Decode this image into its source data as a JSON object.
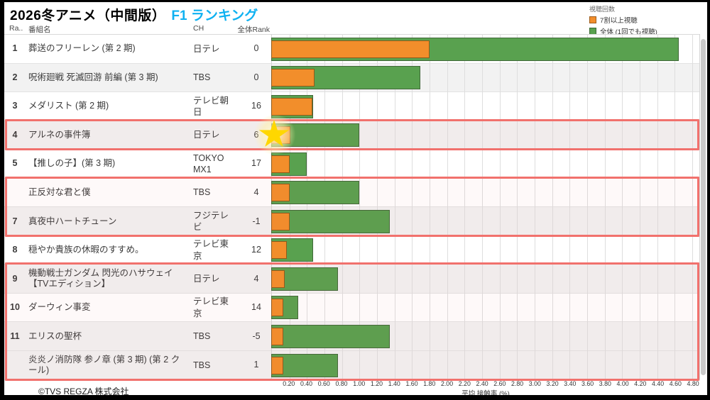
{
  "title": {
    "main": "2026冬アニメ（中間版）",
    "accent": "F1 ランキング"
  },
  "legend": {
    "title": "視聴回数",
    "items": [
      {
        "label": "7割以上視聴",
        "color": "#f28e2b"
      },
      {
        "label": "全体 (1回でも視聴)",
        "color": "#59a14f"
      }
    ]
  },
  "columns": {
    "rank": "Ra..",
    "title": "番組名",
    "channel": "CH",
    "rank_diff": "全体Rank差"
  },
  "rows": [
    {
      "rank": "1",
      "title": "葬送のフリーレン (第 2 期)",
      "channel": "日テレ",
      "diff": "0",
      "total": 4.64,
      "heavy": 1.8,
      "band": "white"
    },
    {
      "rank": "2",
      "title": "呪術廻戦 死滅回游 前編 (第 3 期)",
      "channel": "TBS",
      "diff": "0",
      "total": 1.7,
      "heavy": 0.49,
      "band": "gray"
    },
    {
      "rank": "3",
      "title": "メダリスト (第 2 期)",
      "channel": "テレビ朝日",
      "diff": "16",
      "total": 0.48,
      "heavy": 0.47,
      "band": "white"
    },
    {
      "rank": "4",
      "title": "アルネの事件簿",
      "channel": "日テレ",
      "diff": "6",
      "total": 1.0,
      "heavy": 0.22,
      "band": "gray"
    },
    {
      "rank": "5",
      "title": "【推しの子】(第 3 期)",
      "channel": "TOKYO MX1",
      "diff": "17",
      "total": 0.4,
      "heavy": 0.21,
      "band": "white"
    },
    {
      "rank": "",
      "title": "正反対な君と僕",
      "channel": "TBS",
      "diff": "4",
      "total": 1.0,
      "heavy": 0.21,
      "band": "white"
    },
    {
      "rank": "7",
      "title": "真夜中ハートチューン",
      "channel": "フジテレビ",
      "diff": "-1",
      "total": 1.35,
      "heavy": 0.21,
      "band": "gray"
    },
    {
      "rank": "8",
      "title": "穏やか貴族の休暇のすすめ。",
      "channel": "テレビ東京",
      "diff": "12",
      "total": 0.48,
      "heavy": 0.18,
      "band": "white"
    },
    {
      "rank": "9",
      "title": "機動戦士ガンダム 閃光のハサウェイ【TVエディション】",
      "channel": "日テレ",
      "diff": "4",
      "total": 0.76,
      "heavy": 0.15,
      "band": "gray"
    },
    {
      "rank": "10",
      "title": "ダーウィン事変",
      "channel": "テレビ東京",
      "diff": "14",
      "total": 0.31,
      "heavy": 0.14,
      "band": "white"
    },
    {
      "rank": "11",
      "title": "エリスの聖杯",
      "channel": "TBS",
      "diff": "-5",
      "total": 1.35,
      "heavy": 0.14,
      "band": "gray"
    },
    {
      "rank": "",
      "title": "炎炎ノ消防隊 参ノ章 (第 3 期) (第 2 クール)",
      "channel": "TBS",
      "diff": "1",
      "total": 0.76,
      "heavy": 0.14,
      "band": "gray"
    }
  ],
  "axis": {
    "label": "平均 接触率 (%)",
    "max": 4.88,
    "ticks": [
      "0.20",
      "0.40",
      "0.60",
      "0.80",
      "1.00",
      "1.20",
      "1.40",
      "1.60",
      "1.80",
      "2.00",
      "2.20",
      "2.40",
      "2.60",
      "2.80",
      "3.00",
      "3.20",
      "3.40",
      "3.60",
      "3.80",
      "4.00",
      "4.20",
      "4.40",
      "4.60",
      "4.80"
    ]
  },
  "highlight_boxes": [
    {
      "start_row": 3,
      "end_row": 3
    },
    {
      "start_row": 5,
      "end_row": 6
    },
    {
      "start_row": 8,
      "end_row": 11
    }
  ],
  "star": {
    "row_index": 3
  },
  "footer": {
    "copyright": "©TVS REGZA 株式会社"
  },
  "colors": {
    "bar_total": "#59a14f",
    "bar_heavy": "#f28e2b",
    "accent_title": "#0eb1f1",
    "highlight_border": "#f1716d",
    "band_gray": "#f2f2f2",
    "star": "#ffd700"
  },
  "chart_data": {
    "type": "bar",
    "orientation": "horizontal",
    "title": "2026冬アニメ（中間版） F1 ランキング",
    "xlabel": "平均 接触率 (%)",
    "ylabel": "番組名",
    "xlim": [
      0,
      4.88
    ],
    "x_ticks_step": 0.2,
    "grid": true,
    "legend_position": "top-right",
    "categories": [
      "葬送のフリーレン (第 2 期)",
      "呪術廻戦 死滅回游 前編 (第 3 期)",
      "メダリスト (第 2 期)",
      "アルネの事件簿",
      "【推しの子】(第 3 期)",
      "正反対な君と僕",
      "真夜中ハートチューン",
      "穏やか貴族の休暇のすすめ。",
      "機動戦士ガンダム 閃光のハサウェイ【TVエディション】",
      "ダーウィン事変",
      "エリスの聖杯",
      "炎炎ノ消防隊 参ノ章 (第 3 期) (第 2 クール)"
    ],
    "series": [
      {
        "name": "全体 (1回でも視聴)",
        "color": "#59a14f",
        "values": [
          4.64,
          1.7,
          0.48,
          1.0,
          0.4,
          1.0,
          1.35,
          0.48,
          0.76,
          0.31,
          1.35,
          0.76
        ]
      },
      {
        "name": "7割以上視聴",
        "color": "#f28e2b",
        "values": [
          1.8,
          0.49,
          0.47,
          0.22,
          0.21,
          0.21,
          0.21,
          0.18,
          0.15,
          0.14,
          0.14,
          0.14
        ]
      }
    ]
  }
}
